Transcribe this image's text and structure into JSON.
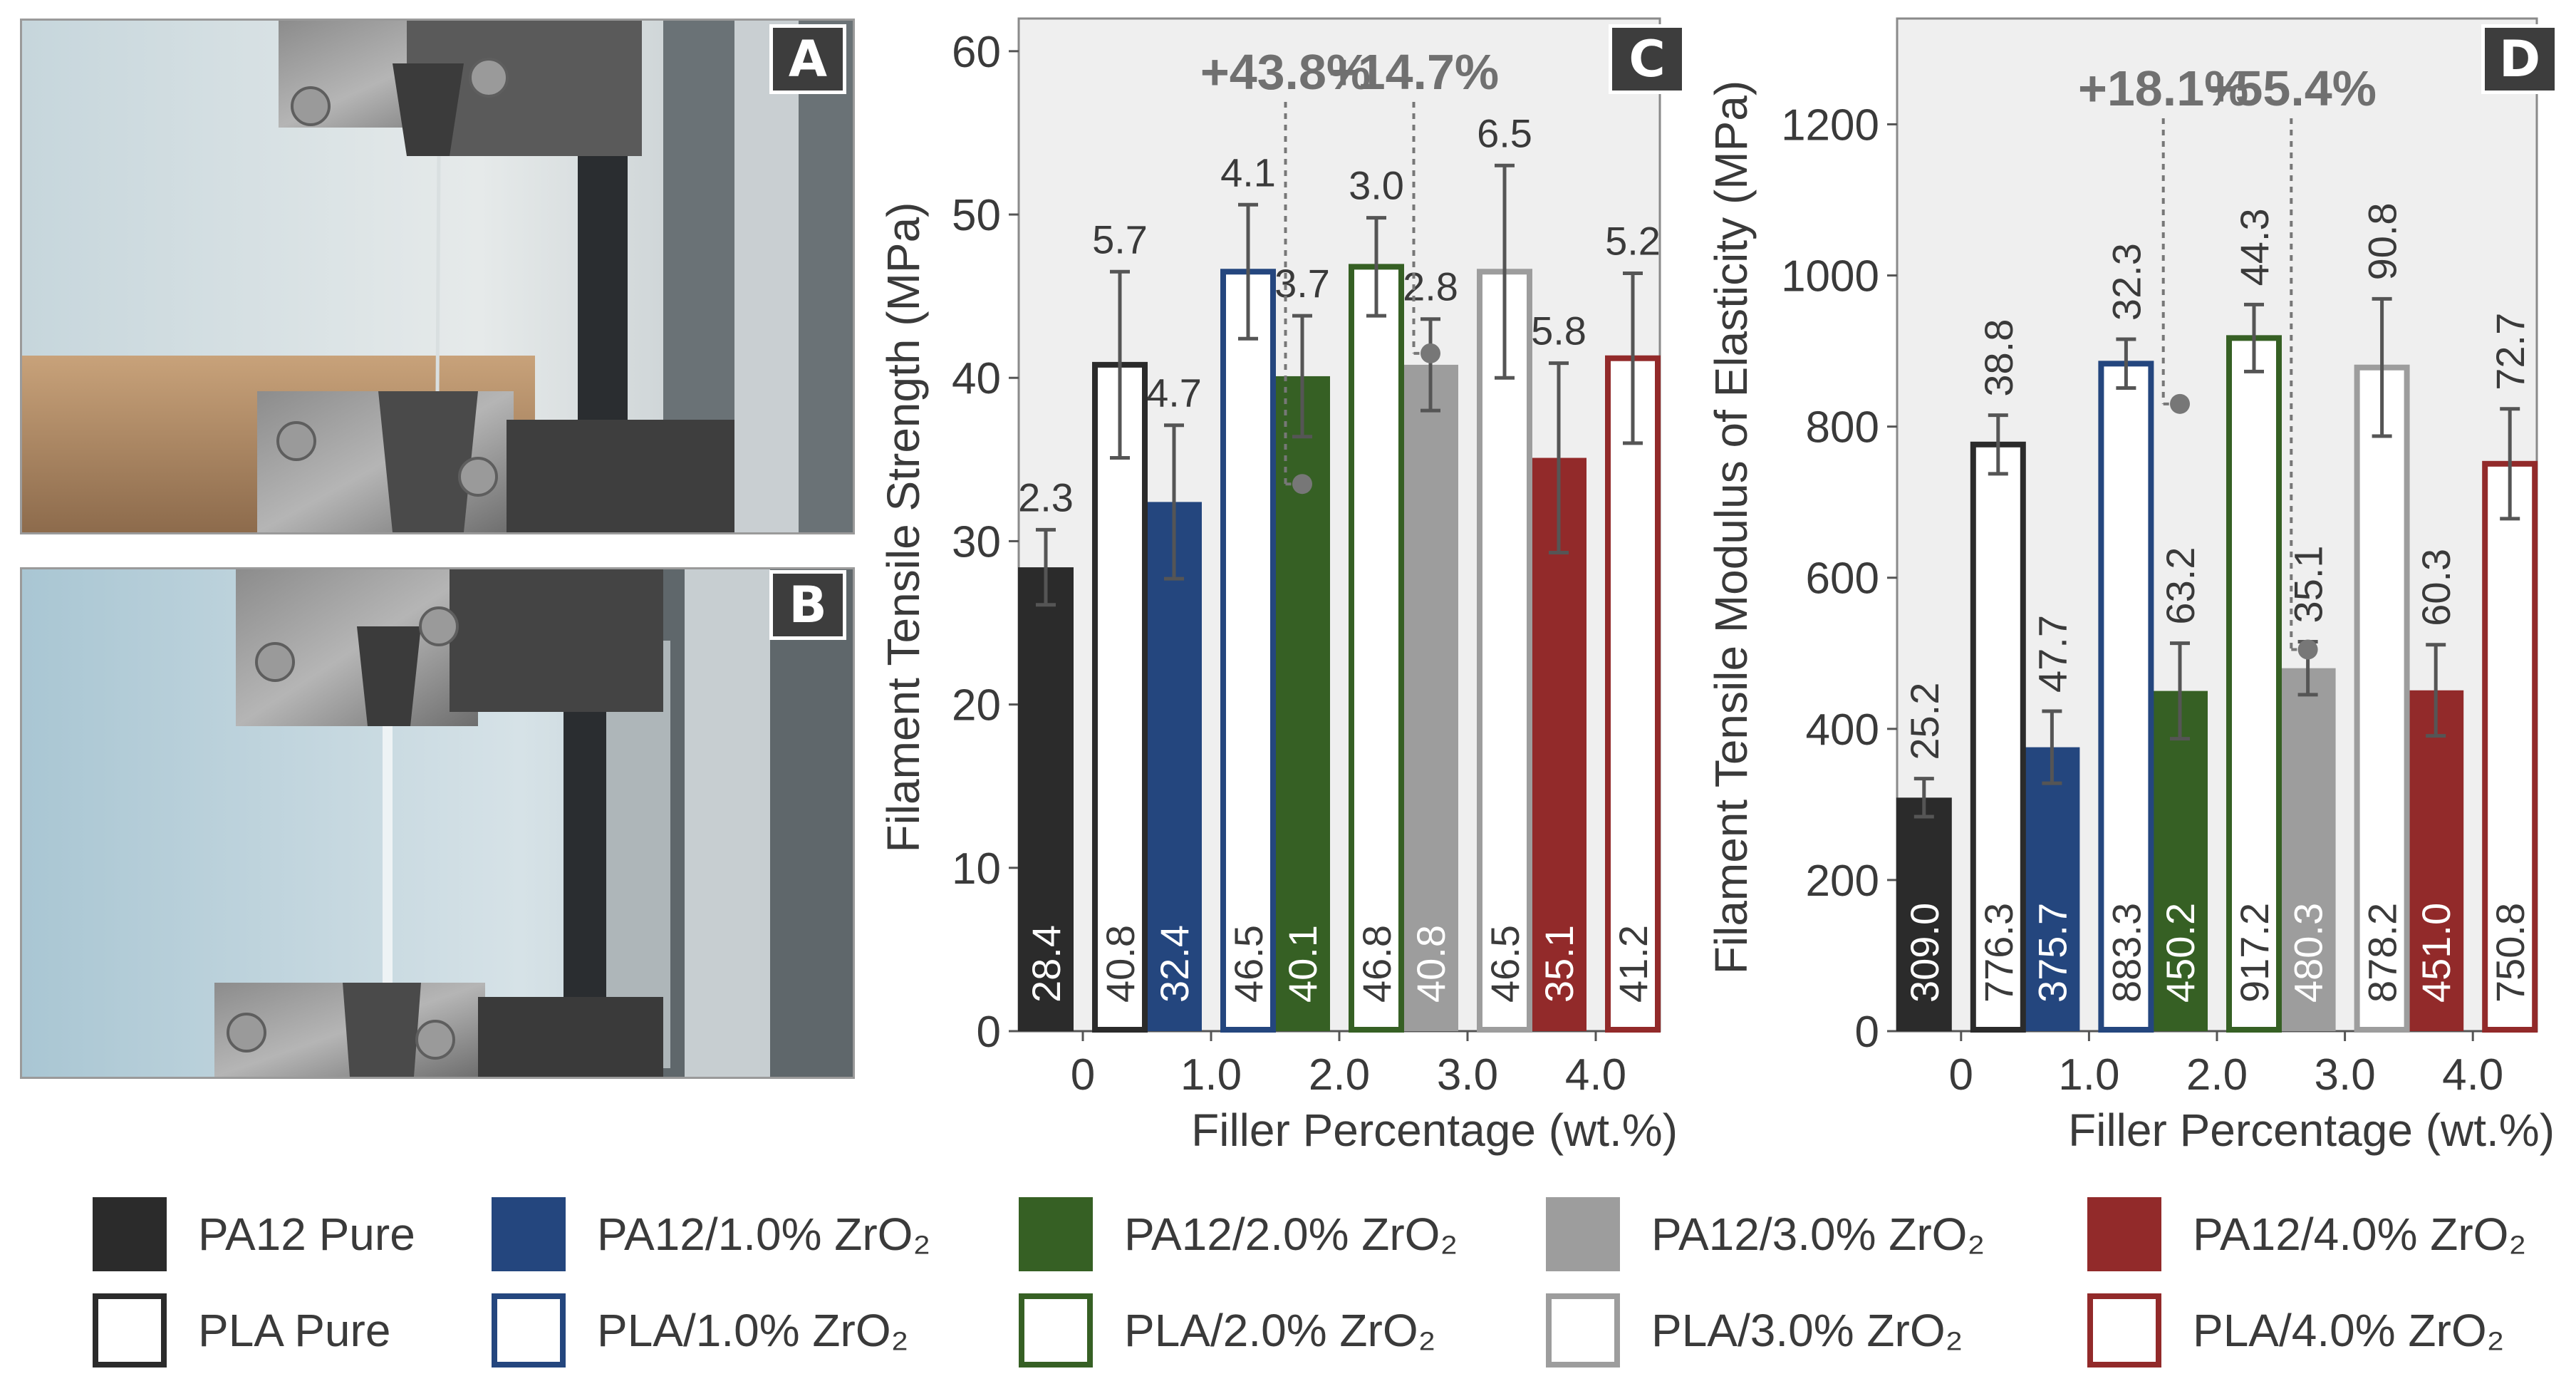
{
  "panels": {
    "a": {
      "label": "A"
    },
    "b": {
      "label": "B"
    },
    "c": {
      "label": "C"
    },
    "d": {
      "label": "D"
    }
  },
  "legend": [
    {
      "label": "PA12 Pure",
      "color": "#2b2b2b",
      "style": "filled"
    },
    {
      "label": "PA12/1.0% ZrO₂",
      "color": "#24467e",
      "style": "filled"
    },
    {
      "label": "PA12/2.0% ZrO₂",
      "color": "#366024",
      "style": "filled"
    },
    {
      "label": "PA12/3.0% ZrO₂",
      "color": "#9d9d9d",
      "style": "filled"
    },
    {
      "label": "PA12/4.0% ZrO₂",
      "color": "#922a2a",
      "style": "filled"
    },
    {
      "label": "PLA Pure",
      "color": "#2b2b2b",
      "style": "outline"
    },
    {
      "label": "PLA/1.0% ZrO₂",
      "color": "#24467e",
      "style": "outline"
    },
    {
      "label": "PLA/2.0% ZrO₂",
      "color": "#366024",
      "style": "outline"
    },
    {
      "label": "PLA/3.0% ZrO₂",
      "color": "#9d9d9d",
      "style": "outline"
    },
    {
      "label": "PLA/4.0% ZrO₂",
      "color": "#922a2a",
      "style": "outline"
    }
  ],
  "chart_data": [
    {
      "type": "bar",
      "panel": "C",
      "title": "",
      "xlabel": "Filler Percentage (wt.%)",
      "ylabel": "Filament Tensile Strength (MPa)",
      "categories": [
        "0",
        "1.0",
        "2.0",
        "3.0",
        "4.0"
      ],
      "ylim": [
        0,
        62
      ],
      "yticks": [
        0,
        10,
        20,
        30,
        40,
        50,
        60
      ],
      "colors": [
        "#2b2b2b",
        "#24467e",
        "#366024",
        "#9d9d9d",
        "#922a2a"
      ],
      "series": [
        {
          "name": "PA12",
          "style": "filled",
          "values": [
            28.4,
            32.4,
            40.1,
            40.8,
            35.1
          ],
          "value_labels": [
            "28.4",
            "32.4",
            "40.1",
            "40.8",
            "35.1"
          ],
          "errors": [
            2.3,
            4.7,
            3.7,
            2.8,
            5.8
          ],
          "error_labels": [
            "2.3",
            "4.7",
            "3.7",
            "2.8",
            "5.8"
          ]
        },
        {
          "name": "PLA",
          "style": "outline",
          "values": [
            40.8,
            46.5,
            46.8,
            46.5,
            41.2
          ],
          "value_labels": [
            "40.8",
            "46.5",
            "46.8",
            "46.5",
            "41.2"
          ],
          "errors": [
            5.7,
            4.1,
            3.0,
            6.5,
            5.2
          ],
          "error_labels": [
            "5.7",
            "4.1",
            "3.0",
            "6.5",
            "5.2"
          ]
        }
      ],
      "annotations": [
        {
          "text": "+43.8%",
          "from_category": 1,
          "to_category": 2,
          "from_value": 33.5
        },
        {
          "text": "+14.7%",
          "from_category": 2,
          "to_category": 3,
          "from_value": 41.5
        }
      ]
    },
    {
      "type": "bar",
      "panel": "D",
      "title": "",
      "xlabel": "Filler Percentage (wt.%)",
      "ylabel": "Filament Tensile Modulus of Elasticity (MPa)",
      "categories": [
        "0",
        "1.0",
        "2.0",
        "3.0",
        "4.0"
      ],
      "ylim": [
        0,
        1340
      ],
      "yticks": [
        0,
        200,
        400,
        600,
        800,
        1000,
        1200
      ],
      "colors": [
        "#2b2b2b",
        "#24467e",
        "#366024",
        "#9d9d9d",
        "#922a2a"
      ],
      "series": [
        {
          "name": "PA12",
          "style": "filled",
          "values": [
            309.0,
            375.7,
            450.2,
            480.3,
            451.0
          ],
          "value_labels": [
            "309.0",
            "375.7",
            "450.2",
            "480.3",
            "451.0"
          ],
          "errors": [
            25.2,
            47.7,
            63.2,
            35.1,
            60.3
          ],
          "error_labels": [
            "25.2",
            "47.7",
            "63.2",
            "35.1",
            "60.3"
          ]
        },
        {
          "name": "PLA",
          "style": "outline",
          "values": [
            776.3,
            883.3,
            917.2,
            878.2,
            750.8
          ],
          "value_labels": [
            "776.3",
            "883.3",
            "917.2",
            "878.2",
            "750.8"
          ],
          "errors": [
            38.8,
            32.3,
            44.3,
            90.8,
            72.7
          ],
          "error_labels": [
            "38.8",
            "32.3",
            "44.3",
            "90.8",
            "72.7"
          ]
        }
      ],
      "annotations": [
        {
          "text": "+18.1%",
          "from_category": 1,
          "to_category": 2,
          "from_value": 830
        },
        {
          "text": "+55.4%",
          "from_category": 2,
          "to_category": 3,
          "from_value": 505
        }
      ]
    }
  ]
}
